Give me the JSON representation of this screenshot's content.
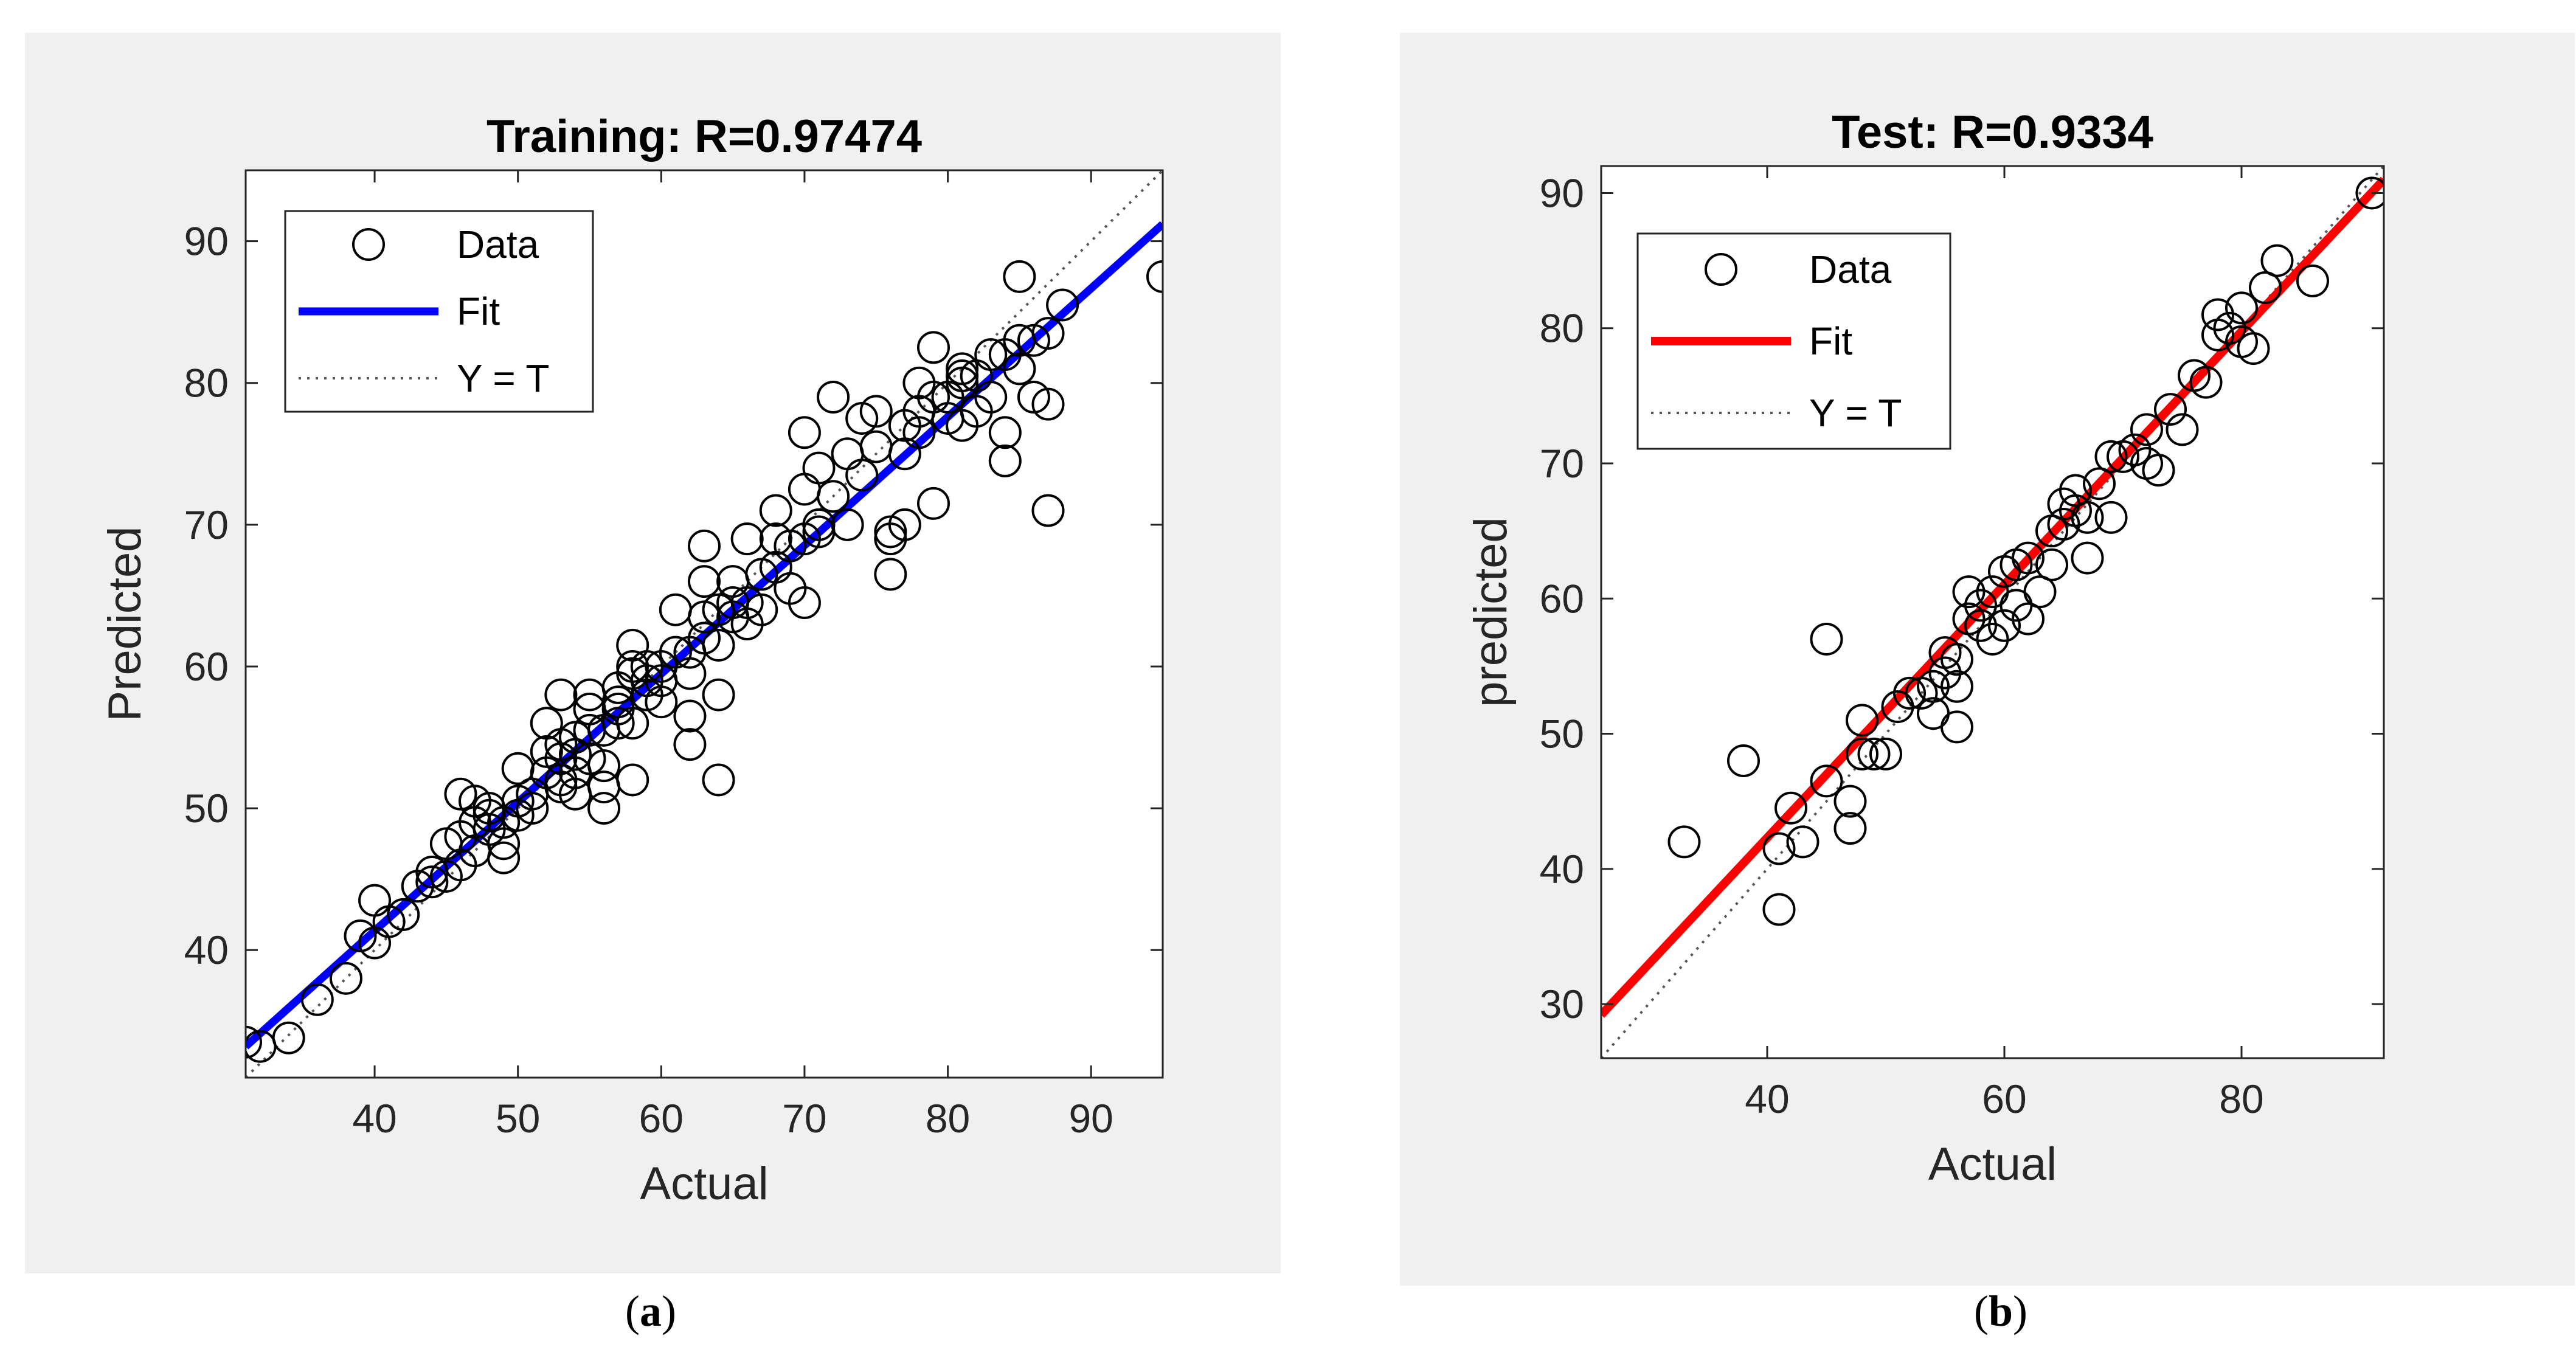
{
  "captions": [
    {
      "open": "(",
      "letter": "a",
      "close": ")"
    },
    {
      "open": "(",
      "letter": "b",
      "close": ")"
    }
  ],
  "chart_data": [
    {
      "type": "scatter",
      "title": "Training: R=0.97474",
      "xlabel": "Actual",
      "ylabel": "Predicted",
      "xlim": [
        31,
        95
      ],
      "ylim": [
        31,
        95
      ],
      "xticks": [
        40,
        50,
        60,
        70,
        80,
        90
      ],
      "yticks": [
        40,
        50,
        60,
        70,
        80,
        90
      ],
      "legend": {
        "location": "top-left",
        "entries": [
          {
            "label": "Data",
            "style": "marker"
          },
          {
            "label": "Fit",
            "style": "line"
          },
          {
            "label": "Y = T",
            "style": "dotted"
          }
        ]
      },
      "fit_color": "#0000ff",
      "fit_line": [
        [
          31,
          33.2
        ],
        [
          95,
          91.2
        ]
      ],
      "identity_line": [
        [
          31,
          31
        ],
        [
          95,
          95
        ]
      ],
      "series": [
        {
          "name": "Data",
          "x": [
            31,
            32,
            34,
            36,
            38,
            39,
            40,
            40,
            41,
            42,
            43,
            44,
            44,
            45,
            45,
            46,
            46,
            46,
            47,
            47,
            47,
            48,
            48,
            48,
            49,
            49,
            49,
            50,
            50,
            50,
            51,
            51,
            52,
            52,
            52,
            53,
            53,
            53,
            53,
            53,
            54,
            54,
            54,
            54,
            55,
            55,
            55,
            55,
            56,
            56,
            56,
            56,
            57,
            57,
            57,
            57,
            58,
            58,
            58,
            58,
            58,
            59,
            59,
            59,
            60,
            60,
            60,
            61,
            61,
            62,
            62,
            62,
            62,
            63,
            63,
            63,
            63,
            64,
            64,
            64,
            64,
            65,
            65,
            65,
            66,
            66,
            66,
            67,
            67,
            68,
            68,
            68,
            69,
            69,
            70,
            70,
            70,
            70,
            71,
            71,
            71,
            72,
            72,
            73,
            73,
            74,
            74,
            75,
            75,
            76,
            76,
            76,
            77,
            77,
            77,
            78,
            78,
            78,
            79,
            79,
            79,
            80,
            80,
            81,
            81,
            81,
            81,
            82,
            82,
            83,
            83,
            84,
            84,
            84,
            85,
            85,
            85,
            86,
            86,
            87,
            87,
            87,
            88,
            95
          ],
          "y": [
            33.5,
            33.2,
            33.8,
            36.5,
            38.0,
            41.0,
            40.5,
            43.5,
            42.0,
            42.5,
            44.5,
            45.5,
            44.8,
            47.5,
            45.2,
            46.0,
            48.0,
            51.0,
            49.0,
            47.0,
            50.5,
            48.5,
            49.5,
            50.0,
            47.5,
            46.5,
            49.0,
            52.8,
            50.5,
            49.5,
            51.0,
            50.0,
            52.5,
            54.0,
            56.0,
            53.5,
            58.0,
            51.5,
            54.5,
            52.0,
            52.5,
            55.0,
            53.8,
            51.0,
            57.0,
            58.0,
            53.5,
            55.5,
            55.5,
            51.5,
            50.0,
            53.0,
            56.0,
            58.5,
            57.0,
            57.5,
            56.0,
            60.0,
            59.5,
            61.5,
            52.0,
            58.0,
            59.0,
            60.0,
            57.5,
            59.0,
            60.0,
            61.0,
            64.0,
            56.5,
            54.5,
            59.5,
            61.0,
            63.5,
            66.0,
            68.5,
            62.0,
            58.0,
            52.0,
            64.0,
            61.5,
            66.0,
            63.5,
            64.5,
            69.0,
            64.5,
            63.0,
            66.5,
            64.0,
            67.0,
            71.0,
            69.0,
            68.5,
            65.5,
            64.5,
            69.0,
            72.5,
            76.5,
            74.0,
            70.0,
            69.5,
            79.0,
            72.0,
            75.0,
            70.0,
            77.5,
            73.5,
            75.5,
            78.0,
            69.5,
            69.0,
            66.5,
            77.0,
            70.0,
            75.0,
            78.0,
            76.5,
            80.0,
            71.5,
            79.0,
            82.5,
            77.5,
            79.0,
            80.0,
            77.0,
            81.0,
            80.5,
            78.0,
            80.5,
            82.0,
            79.0,
            76.5,
            74.5,
            82.0,
            87.5,
            81.0,
            83.0,
            83.0,
            79.0,
            83.5,
            78.5,
            71.0,
            85.5,
            87.5
          ]
        }
      ]
    },
    {
      "type": "scatter",
      "title": "Test: R=0.9334",
      "xlabel": "Actual",
      "ylabel": "predicted",
      "xlim": [
        26,
        92
      ],
      "ylim": [
        26,
        92
      ],
      "xticks": [
        40,
        60,
        80
      ],
      "yticks": [
        30,
        40,
        50,
        60,
        70,
        80,
        90
      ],
      "legend": {
        "location": "top-left",
        "entries": [
          {
            "label": "Data",
            "style": "marker"
          },
          {
            "label": "Fit",
            "style": "line"
          },
          {
            "label": "Y = T",
            "style": "dotted"
          }
        ]
      },
      "fit_color": "#ff0000",
      "fit_line": [
        [
          26,
          29.2
        ],
        [
          92,
          91.0
        ]
      ],
      "identity_line": [
        [
          26,
          26
        ],
        [
          92,
          92
        ]
      ],
      "series": [
        {
          "name": "Data",
          "x": [
            33,
            38,
            41,
            41,
            42,
            43,
            45,
            45,
            47,
            47,
            48,
            48,
            49,
            50,
            51,
            52,
            53,
            54,
            54,
            55,
            55,
            56,
            56,
            56,
            57,
            57,
            58,
            58,
            59,
            59,
            60,
            60,
            61,
            61,
            62,
            62,
            63,
            64,
            64,
            65,
            65,
            66,
            66,
            67,
            67,
            68,
            69,
            69,
            70,
            71,
            72,
            72,
            73,
            74,
            75,
            76,
            77,
            78,
            78,
            79,
            80,
            80,
            81,
            82,
            83,
            86,
            91
          ],
          "y": [
            42.0,
            48.0,
            41.5,
            37.0,
            44.5,
            42.0,
            46.5,
            57.0,
            45.0,
            43.0,
            51.0,
            48.5,
            48.5,
            48.5,
            52.0,
            53.0,
            53.0,
            53.5,
            51.5,
            56.0,
            54.5,
            53.5,
            50.5,
            55.5,
            58.5,
            60.5,
            58.0,
            59.5,
            60.5,
            57.0,
            58.0,
            62.0,
            59.5,
            62.5,
            63.0,
            58.5,
            60.5,
            65.0,
            62.5,
            67.0,
            65.5,
            68.0,
            66.5,
            63.0,
            66.0,
            68.5,
            70.5,
            66.0,
            70.5,
            71.0,
            70.0,
            72.5,
            69.5,
            74.0,
            72.5,
            76.5,
            76.0,
            81.0,
            79.5,
            80.0,
            81.5,
            79.0,
            78.5,
            83.0,
            85.0,
            83.5,
            90.0
          ]
        }
      ]
    }
  ]
}
